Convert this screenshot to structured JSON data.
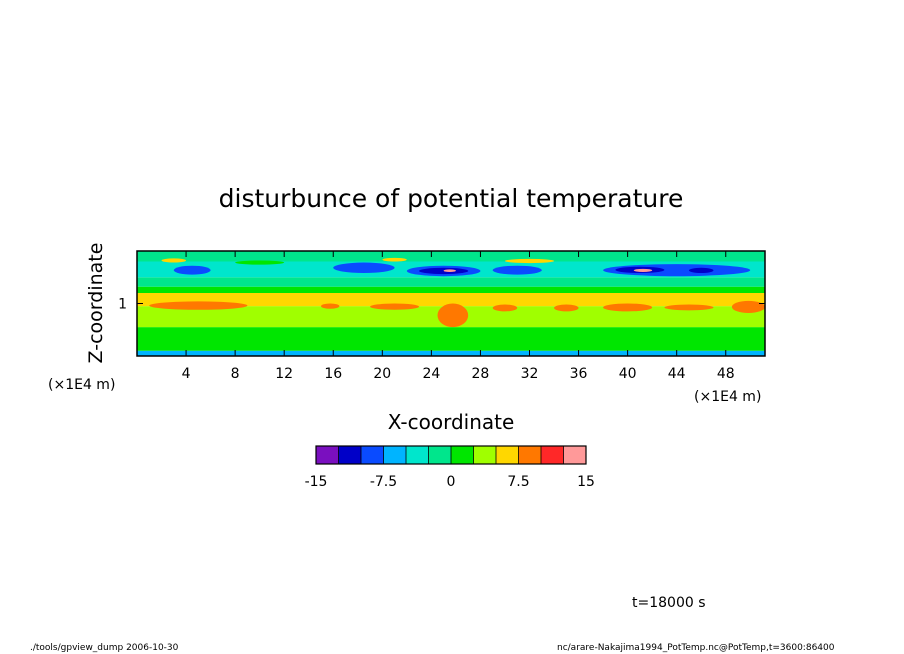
{
  "chart_data": {
    "type": "heatmap",
    "title": "disturbunce of potential temperature",
    "xlabel": "X-coordinate",
    "ylabel": "Z-coordinate",
    "x_unit": "(×1E4 m)",
    "y_unit": "(×1E4 m)",
    "xlim": [
      0,
      51.2
    ],
    "ylim": [
      0,
      2
    ],
    "xticks": [
      4,
      8,
      12,
      16,
      20,
      24,
      28,
      32,
      36,
      40,
      44,
      48
    ],
    "yticks": [
      1
    ],
    "bands": [
      {
        "z": [
          0.0,
          0.1
        ],
        "value": 3
      },
      {
        "z": [
          0.1,
          0.55
        ],
        "value": 6
      },
      {
        "z": [
          0.55,
          0.95
        ],
        "value": 7
      },
      {
        "z": [
          0.95,
          1.2
        ],
        "value": 8
      },
      {
        "z": [
          1.2,
          1.32
        ],
        "value": 6
      },
      {
        "z": [
          1.32,
          1.5
        ],
        "value": 5
      },
      {
        "z": [
          1.5,
          1.8
        ],
        "value": 4
      },
      {
        "z": [
          1.8,
          2.0
        ],
        "value": 5
      }
    ],
    "features": [
      {
        "x": [
          1,
          9
        ],
        "z": [
          0.88,
          1.04
        ],
        "value": 9
      },
      {
        "x": [
          15,
          16.5
        ],
        "z": [
          0.9,
          1.0
        ],
        "value": 9
      },
      {
        "x": [
          19,
          23
        ],
        "z": [
          0.88,
          1.0
        ],
        "value": 9
      },
      {
        "x": [
          24.5,
          27
        ],
        "z": [
          0.55,
          1.0
        ],
        "value": 9
      },
      {
        "x": [
          29,
          31
        ],
        "z": [
          0.85,
          0.98
        ],
        "value": 9
      },
      {
        "x": [
          34,
          36
        ],
        "z": [
          0.85,
          0.98
        ],
        "value": 9
      },
      {
        "x": [
          38,
          42
        ],
        "z": [
          0.85,
          1.0
        ],
        "value": 9
      },
      {
        "x": [
          43,
          47
        ],
        "z": [
          0.87,
          0.98
        ],
        "value": 9
      },
      {
        "x": [
          48.5,
          51.2
        ],
        "z": [
          0.82,
          1.05
        ],
        "value": 9
      },
      {
        "x": [
          3,
          6
        ],
        "z": [
          1.55,
          1.72
        ],
        "value": 2
      },
      {
        "x": [
          16,
          21
        ],
        "z": [
          1.58,
          1.78
        ],
        "value": 2
      },
      {
        "x": [
          22,
          28
        ],
        "z": [
          1.52,
          1.72
        ],
        "value": 2
      },
      {
        "x": [
          29,
          33
        ],
        "z": [
          1.55,
          1.72
        ],
        "value": 2
      },
      {
        "x": [
          38,
          50
        ],
        "z": [
          1.52,
          1.75
        ],
        "value": 2
      },
      {
        "x": [
          23,
          27
        ],
        "z": [
          1.56,
          1.68
        ],
        "value": 1
      },
      {
        "x": [
          39,
          43
        ],
        "z": [
          1.58,
          1.7
        ],
        "value": 1
      },
      {
        "x": [
          45,
          47
        ],
        "z": [
          1.58,
          1.68
        ],
        "value": 1
      },
      {
        "x": [
          2,
          4
        ],
        "z": [
          1.78,
          1.86
        ],
        "value": 8
      },
      {
        "x": [
          8,
          12
        ],
        "z": [
          1.74,
          1.82
        ],
        "value": 6
      },
      {
        "x": [
          20,
          22
        ],
        "z": [
          1.8,
          1.87
        ],
        "value": 8
      },
      {
        "x": [
          30,
          34
        ],
        "z": [
          1.77,
          1.85
        ],
        "value": 8
      },
      {
        "x": [
          40.5,
          42
        ],
        "z": [
          1.6,
          1.66
        ],
        "value": 11
      },
      {
        "x": [
          25,
          26
        ],
        "z": [
          1.6,
          1.65
        ],
        "value": 11
      }
    ],
    "colorbar": {
      "colors": [
        "#7a0fbf",
        "#0000c8",
        "#0a4bff",
        "#00b4ff",
        "#00e6cc",
        "#00e68c",
        "#00e600",
        "#a0ff00",
        "#ffd700",
        "#ff7800",
        "#ff2828",
        "#ff9999"
      ],
      "tick_labels": [
        "-15",
        "-7.5",
        "0",
        "7.5",
        "15"
      ],
      "tick_values": [
        -15,
        -7.5,
        0,
        7.5,
        15
      ],
      "range": [
        -15,
        15
      ]
    }
  },
  "time_label": "t=18000 s",
  "footer_left": "./tools/gpview_dump  2006-10-30",
  "footer_right": "nc/arare-Nakajima1994_PotTemp.nc@PotTemp,t=3600:86400"
}
